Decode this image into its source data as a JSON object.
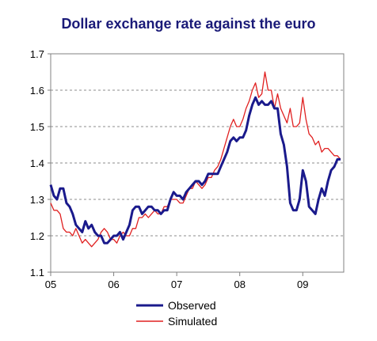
{
  "chart_data": {
    "type": "line",
    "title": "Dollar exchange rate against the euro",
    "xlabel": "",
    "ylabel": "",
    "xlim": [
      2005.0,
      2009.65
    ],
    "ylim": [
      1.1,
      1.7
    ],
    "x_ticks": [
      2005,
      2006,
      2007,
      2008,
      2009
    ],
    "x_tick_labels": [
      "05",
      "06",
      "07",
      "08",
      "09"
    ],
    "y_ticks": [
      1.1,
      1.2,
      1.3,
      1.4,
      1.5,
      1.6,
      1.7
    ],
    "y_tick_labels": [
      "1.1",
      "1.2",
      "1.3",
      "1.4",
      "1.5",
      "1.6",
      "1.7"
    ],
    "grid": "horizontal dashed",
    "legend_position": "bottom",
    "series": [
      {
        "name": "Observed",
        "color": "#1a1a8c",
        "x": [
          2005.0,
          2005.05,
          2005.1,
          2005.15,
          2005.2,
          2005.25,
          2005.3,
          2005.35,
          2005.4,
          2005.45,
          2005.5,
          2005.55,
          2005.6,
          2005.65,
          2005.7,
          2005.75,
          2005.8,
          2005.85,
          2005.9,
          2005.95,
          2006.0,
          2006.05,
          2006.1,
          2006.15,
          2006.2,
          2006.25,
          2006.3,
          2006.35,
          2006.4,
          2006.45,
          2006.5,
          2006.55,
          2006.6,
          2006.65,
          2006.7,
          2006.75,
          2006.8,
          2006.85,
          2006.9,
          2006.95,
          2007.0,
          2007.05,
          2007.1,
          2007.15,
          2007.2,
          2007.25,
          2007.3,
          2007.35,
          2007.4,
          2007.45,
          2007.5,
          2007.55,
          2007.6,
          2007.65,
          2007.7,
          2007.75,
          2007.8,
          2007.85,
          2007.9,
          2007.95,
          2008.0,
          2008.05,
          2008.1,
          2008.15,
          2008.2,
          2008.25,
          2008.3,
          2008.35,
          2008.4,
          2008.45,
          2008.5,
          2008.55,
          2008.6,
          2008.65,
          2008.7,
          2008.75,
          2008.8,
          2008.85,
          2008.9,
          2008.95,
          2009.0,
          2009.05,
          2009.1,
          2009.15,
          2009.2,
          2009.25,
          2009.3,
          2009.35,
          2009.4,
          2009.45,
          2009.5,
          2009.55,
          2009.6
        ],
        "values": [
          1.34,
          1.31,
          1.3,
          1.33,
          1.33,
          1.29,
          1.28,
          1.26,
          1.23,
          1.22,
          1.21,
          1.24,
          1.22,
          1.23,
          1.21,
          1.2,
          1.2,
          1.18,
          1.18,
          1.19,
          1.2,
          1.2,
          1.21,
          1.19,
          1.21,
          1.23,
          1.27,
          1.28,
          1.28,
          1.26,
          1.27,
          1.28,
          1.28,
          1.27,
          1.27,
          1.26,
          1.27,
          1.27,
          1.3,
          1.32,
          1.31,
          1.31,
          1.3,
          1.32,
          1.33,
          1.34,
          1.35,
          1.35,
          1.34,
          1.35,
          1.37,
          1.37,
          1.37,
          1.37,
          1.39,
          1.41,
          1.43,
          1.46,
          1.47,
          1.46,
          1.47,
          1.47,
          1.49,
          1.53,
          1.56,
          1.58,
          1.56,
          1.57,
          1.56,
          1.56,
          1.57,
          1.55,
          1.55,
          1.48,
          1.45,
          1.39,
          1.29,
          1.27,
          1.27,
          1.3,
          1.38,
          1.35,
          1.28,
          1.27,
          1.26,
          1.3,
          1.33,
          1.31,
          1.35,
          1.38,
          1.39,
          1.41,
          1.41
        ]
      },
      {
        "name": "Simulated",
        "color": "#e02020",
        "x": [
          2005.0,
          2005.05,
          2005.1,
          2005.15,
          2005.2,
          2005.25,
          2005.3,
          2005.35,
          2005.4,
          2005.45,
          2005.5,
          2005.55,
          2005.6,
          2005.65,
          2005.7,
          2005.75,
          2005.8,
          2005.85,
          2005.9,
          2005.95,
          2006.0,
          2006.05,
          2006.1,
          2006.15,
          2006.2,
          2006.25,
          2006.3,
          2006.35,
          2006.4,
          2006.45,
          2006.5,
          2006.55,
          2006.6,
          2006.65,
          2006.7,
          2006.75,
          2006.8,
          2006.85,
          2006.9,
          2006.95,
          2007.0,
          2007.05,
          2007.1,
          2007.15,
          2007.2,
          2007.25,
          2007.3,
          2007.35,
          2007.4,
          2007.45,
          2007.5,
          2007.55,
          2007.6,
          2007.65,
          2007.7,
          2007.75,
          2007.8,
          2007.85,
          2007.9,
          2007.95,
          2008.0,
          2008.05,
          2008.1,
          2008.15,
          2008.2,
          2008.25,
          2008.3,
          2008.35,
          2008.4,
          2008.45,
          2008.5,
          2008.55,
          2008.6,
          2008.65,
          2008.7,
          2008.75,
          2008.8,
          2008.85,
          2008.9,
          2008.95,
          2009.0,
          2009.05,
          2009.1,
          2009.15,
          2009.2,
          2009.25,
          2009.3,
          2009.35,
          2009.4,
          2009.45,
          2009.5,
          2009.55,
          2009.6
        ],
        "values": [
          1.29,
          1.27,
          1.27,
          1.26,
          1.22,
          1.21,
          1.21,
          1.2,
          1.22,
          1.2,
          1.18,
          1.19,
          1.18,
          1.17,
          1.18,
          1.19,
          1.21,
          1.22,
          1.21,
          1.19,
          1.19,
          1.18,
          1.2,
          1.21,
          1.2,
          1.2,
          1.22,
          1.22,
          1.25,
          1.25,
          1.26,
          1.25,
          1.26,
          1.27,
          1.26,
          1.26,
          1.28,
          1.28,
          1.3,
          1.3,
          1.3,
          1.29,
          1.29,
          1.31,
          1.33,
          1.33,
          1.35,
          1.34,
          1.33,
          1.34,
          1.36,
          1.36,
          1.38,
          1.39,
          1.41,
          1.44,
          1.47,
          1.5,
          1.52,
          1.5,
          1.5,
          1.52,
          1.55,
          1.57,
          1.6,
          1.62,
          1.58,
          1.59,
          1.65,
          1.6,
          1.6,
          1.55,
          1.59,
          1.55,
          1.53,
          1.51,
          1.55,
          1.5,
          1.5,
          1.51,
          1.58,
          1.52,
          1.48,
          1.47,
          1.45,
          1.46,
          1.43,
          1.44,
          1.44,
          1.43,
          1.42,
          1.42,
          1.41
        ]
      }
    ]
  }
}
